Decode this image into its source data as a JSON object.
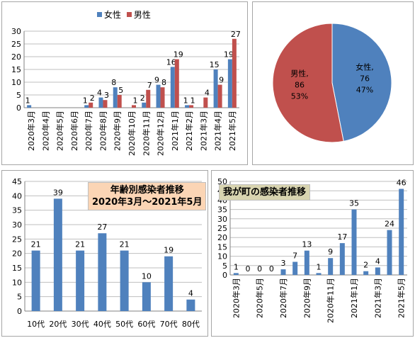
{
  "colors": {
    "female": "#4f81bd",
    "male": "#c0504d",
    "bar": "#4f81bd",
    "grid": "#bfbfbf",
    "axis": "#808080"
  },
  "chart_data": [
    {
      "type": "bar",
      "legend_position": "top",
      "categories": [
        "2020年3月",
        "2020年4月",
        "2020年5月",
        "2020年6月",
        "2020年7月",
        "2020年8月",
        "2020年9月",
        "2020年10月",
        "2020年11月",
        "2020年12月",
        "2021年1月",
        "2021年2月",
        "2021年3月",
        "2021年4月",
        "2021年5月"
      ],
      "series": [
        {
          "name": "女性",
          "color": "#4f81bd",
          "values": [
            1,
            0,
            0,
            0,
            1,
            4,
            8,
            0,
            2,
            9,
            16,
            1,
            0,
            15,
            19
          ],
          "labels": [
            "1",
            "",
            "",
            "",
            "1",
            "4",
            "8",
            "",
            "2",
            "9",
            "16",
            "1",
            "",
            "15",
            "19"
          ]
        },
        {
          "name": "男性",
          "color": "#c0504d",
          "values": [
            0,
            0,
            0,
            0,
            2,
            3,
            5,
            1,
            7,
            8,
            19,
            1,
            4,
            9,
            27
          ],
          "labels": [
            "",
            "",
            "",
            "",
            "2",
            "3",
            "5",
            "1",
            "7",
            "8",
            "19",
            "1",
            "4",
            "9",
            "27"
          ]
        }
      ],
      "yticks": [
        "0",
        "5",
        "10",
        "15",
        "20",
        "25",
        "30"
      ],
      "ylim": [
        0,
        30
      ],
      "grid": true
    },
    {
      "type": "pie",
      "slices": [
        {
          "name": "女性",
          "value": 76,
          "percent": "47%",
          "color": "#4f81bd"
        },
        {
          "name": "男性",
          "value": 86,
          "percent": "53%",
          "color": "#c0504d"
        }
      ]
    },
    {
      "type": "bar",
      "title": "年齢別感染者推移\n2020年3月～2021年5月",
      "categories": [
        "10代",
        "20代",
        "30代",
        "40代",
        "50代",
        "60代",
        "70代",
        "80代"
      ],
      "values": [
        21,
        39,
        21,
        27,
        21,
        10,
        19,
        4
      ],
      "yticks": [
        "0",
        "5",
        "10",
        "15",
        "20",
        "25",
        "30",
        "35",
        "40",
        "45"
      ],
      "ylim": [
        0,
        45
      ],
      "grid": true
    },
    {
      "type": "bar",
      "title": "我が町の感染者推移",
      "categories": [
        "2020年3月",
        "2020年4月",
        "2020年5月",
        "2020年6月",
        "2020年7月",
        "2020年8月",
        "2020年9月",
        "2020年10月",
        "2020年11月",
        "2020年12月",
        "2021年1月",
        "2021年2月",
        "2021年3月",
        "2021年4月",
        "2021年5月"
      ],
      "tick_labels": [
        "2020年3月",
        "",
        "2020年5月",
        "",
        "2020年7月",
        "",
        "2020年9月",
        "",
        "2020年11月",
        "",
        "2021年1月",
        "",
        "2021年3月",
        "",
        "2021年5月"
      ],
      "values": [
        1,
        0,
        0,
        0,
        3,
        7,
        13,
        1,
        9,
        17,
        35,
        2,
        4,
        24,
        46
      ],
      "yticks": [
        "0",
        "5",
        "10",
        "15",
        "20",
        "25",
        "30",
        "35",
        "40",
        "45",
        "50"
      ],
      "ylim": [
        0,
        50
      ],
      "grid": true
    }
  ]
}
